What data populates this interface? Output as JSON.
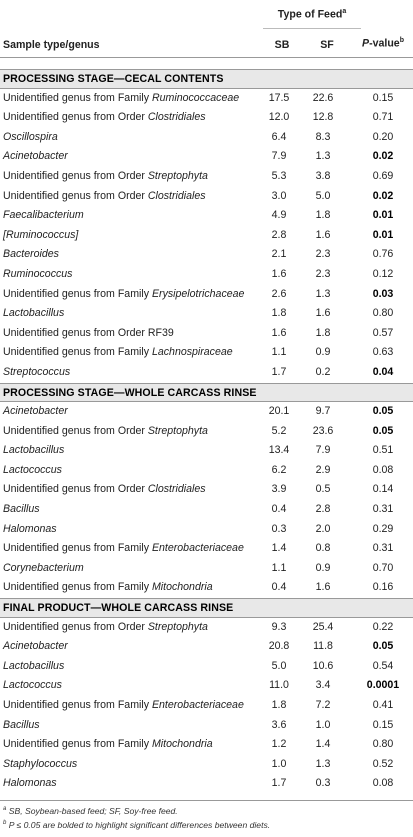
{
  "header": {
    "type_of_feed": "Type of Feed",
    "type_of_feed_sup": "a",
    "sample_col": "Sample type/genus",
    "sb": "SB",
    "sf": "SF",
    "p_label": "P",
    "p_suffix": "-value",
    "p_sup": "b"
  },
  "sections": [
    {
      "title": "PROCESSING STAGE—CECAL CONTENTS",
      "rows": [
        {
          "prefix": "Unidentified genus from Family ",
          "italic": "Ruminococcaceae",
          "suffix": "",
          "sb": "17.5",
          "sf": "22.6",
          "p": "0.15",
          "bold": false
        },
        {
          "prefix": "Unidentified genus from Order ",
          "italic": "Clostridiales",
          "suffix": "",
          "sb": "12.0",
          "sf": "12.8",
          "p": "0.71",
          "bold": false
        },
        {
          "prefix": "",
          "italic": "Oscillospira",
          "suffix": "",
          "sb": "6.4",
          "sf": "8.3",
          "p": "0.20",
          "bold": false
        },
        {
          "prefix": "",
          "italic": "Acinetobacter",
          "suffix": "",
          "sb": "7.9",
          "sf": "1.3",
          "p": "0.02",
          "bold": true
        },
        {
          "prefix": "Unidentified genus from Order ",
          "italic": "Streptophyta",
          "suffix": "",
          "sb": "5.3",
          "sf": "3.8",
          "p": "0.69",
          "bold": false
        },
        {
          "prefix": "Unidentified genus from Order ",
          "italic": "Clostridiales",
          "suffix": "",
          "sb": "3.0",
          "sf": "5.0",
          "p": "0.02",
          "bold": true
        },
        {
          "prefix": "",
          "italic": "Faecalibacterium",
          "suffix": "",
          "sb": "4.9",
          "sf": "1.8",
          "p": "0.01",
          "bold": true
        },
        {
          "prefix": "",
          "italic": "[Ruminococcus]",
          "suffix": "",
          "sb": "2.8",
          "sf": "1.6",
          "p": "0.01",
          "bold": true
        },
        {
          "prefix": "",
          "italic": "Bacteroides",
          "suffix": "",
          "sb": "2.1",
          "sf": "2.3",
          "p": "0.76",
          "bold": false
        },
        {
          "prefix": "",
          "italic": "Ruminococcus",
          "suffix": "",
          "sb": "1.6",
          "sf": "2.3",
          "p": "0.12",
          "bold": false
        },
        {
          "prefix": "Unidentified genus from Family ",
          "italic": "Erysipelotrichaceae",
          "suffix": "",
          "sb": "2.6",
          "sf": "1.3",
          "p": "0.03",
          "bold": true
        },
        {
          "prefix": "",
          "italic": "Lactobacillus",
          "suffix": "",
          "sb": "1.8",
          "sf": "1.6",
          "p": "0.80",
          "bold": false
        },
        {
          "prefix": "Unidentified genus from Order RF39",
          "italic": "",
          "suffix": "",
          "sb": "1.6",
          "sf": "1.8",
          "p": "0.57",
          "bold": false
        },
        {
          "prefix": "Unidentified genus from Family ",
          "italic": "Lachnospiraceae",
          "suffix": "",
          "sb": "1.1",
          "sf": "0.9",
          "p": "0.63",
          "bold": false
        },
        {
          "prefix": "",
          "italic": "Streptococcus",
          "suffix": "",
          "sb": "1.7",
          "sf": "0.2",
          "p": "0.04",
          "bold": true
        }
      ]
    },
    {
      "title": "PROCESSING STAGE—WHOLE CARCASS RINSE",
      "rows": [
        {
          "prefix": "",
          "italic": "Acinetobacter",
          "suffix": "",
          "sb": "20.1",
          "sf": "9.7",
          "p": "0.05",
          "bold": true
        },
        {
          "prefix": "Unidentified genus from Order ",
          "italic": "Streptophyta",
          "suffix": "",
          "sb": "5.2",
          "sf": "23.6",
          "p": "0.05",
          "bold": true
        },
        {
          "prefix": "",
          "italic": "Lactobacillus",
          "suffix": "",
          "sb": "13.4",
          "sf": "7.9",
          "p": "0.51",
          "bold": false
        },
        {
          "prefix": "",
          "italic": "Lactococcus",
          "suffix": "",
          "sb": "6.2",
          "sf": "2.9",
          "p": "0.08",
          "bold": false
        },
        {
          "prefix": "Unidentified genus from Order ",
          "italic": "Clostridiales",
          "suffix": "",
          "sb": "3.9",
          "sf": "0.5",
          "p": "0.14",
          "bold": false
        },
        {
          "prefix": "",
          "italic": "Bacillus",
          "suffix": "",
          "sb": "0.4",
          "sf": "2.8",
          "p": "0.31",
          "bold": false
        },
        {
          "prefix": "",
          "italic": "Halomonas",
          "suffix": "",
          "sb": "0.3",
          "sf": "2.0",
          "p": "0.29",
          "bold": false
        },
        {
          "prefix": "Unidentified genus from Family ",
          "italic": "Enterobacteriaceae",
          "suffix": "",
          "sb": "1.4",
          "sf": "0.8",
          "p": "0.31",
          "bold": false
        },
        {
          "prefix": "",
          "italic": "Corynebacterium",
          "suffix": "",
          "sb": "1.1",
          "sf": "0.9",
          "p": "0.70",
          "bold": false
        },
        {
          "prefix": "Unidentified genus from Family ",
          "italic": "Mitochondria",
          "suffix": "",
          "sb": "0.4",
          "sf": "1.6",
          "p": "0.16",
          "bold": false
        }
      ]
    },
    {
      "title": "FINAL PRODUCT—WHOLE CARCASS RINSE",
      "rows": [
        {
          "prefix": "Unidentified genus from Order ",
          "italic": "Streptophyta",
          "suffix": "",
          "sb": "9.3",
          "sf": "25.4",
          "p": "0.22",
          "bold": false
        },
        {
          "prefix": "",
          "italic": "Acinetobacter",
          "suffix": "",
          "sb": "20.8",
          "sf": "11.8",
          "p": "0.05",
          "bold": true
        },
        {
          "prefix": "",
          "italic": "Lactobacillus",
          "suffix": "",
          "sb": "5.0",
          "sf": "10.6",
          "p": "0.54",
          "bold": false
        },
        {
          "prefix": "",
          "italic": "Lactococcus",
          "suffix": "",
          "sb": "11.0",
          "sf": "3.4",
          "p": "0.0001",
          "bold": true
        },
        {
          "prefix": "Unidentified genus from Family ",
          "italic": "Enterobacteriaceae",
          "suffix": "",
          "sb": "1.8",
          "sf": "7.2",
          "p": "0.41",
          "bold": false
        },
        {
          "prefix": "",
          "italic": "Bacillus",
          "suffix": "",
          "sb": "3.6",
          "sf": "1.0",
          "p": "0.15",
          "bold": false
        },
        {
          "prefix": "Unidentified genus from Family ",
          "italic": "Mitochondria",
          "suffix": "",
          "sb": "1.2",
          "sf": "1.4",
          "p": "0.80",
          "bold": false
        },
        {
          "prefix": "",
          "italic": "Staphylococcus",
          "suffix": "",
          "sb": "1.0",
          "sf": "1.3",
          "p": "0.52",
          "bold": false
        },
        {
          "prefix": "",
          "italic": "Halomonas",
          "suffix": "",
          "sb": "1.7",
          "sf": "0.3",
          "p": "0.08",
          "bold": false
        }
      ]
    }
  ],
  "footnotes": [
    {
      "sup": "a",
      "text": " SB, Soybean-based feed; SF, Soy-free feed."
    },
    {
      "sup": "b",
      "text": " P ≤ 0.05 are bolded to highlight significant differences between diets."
    }
  ]
}
